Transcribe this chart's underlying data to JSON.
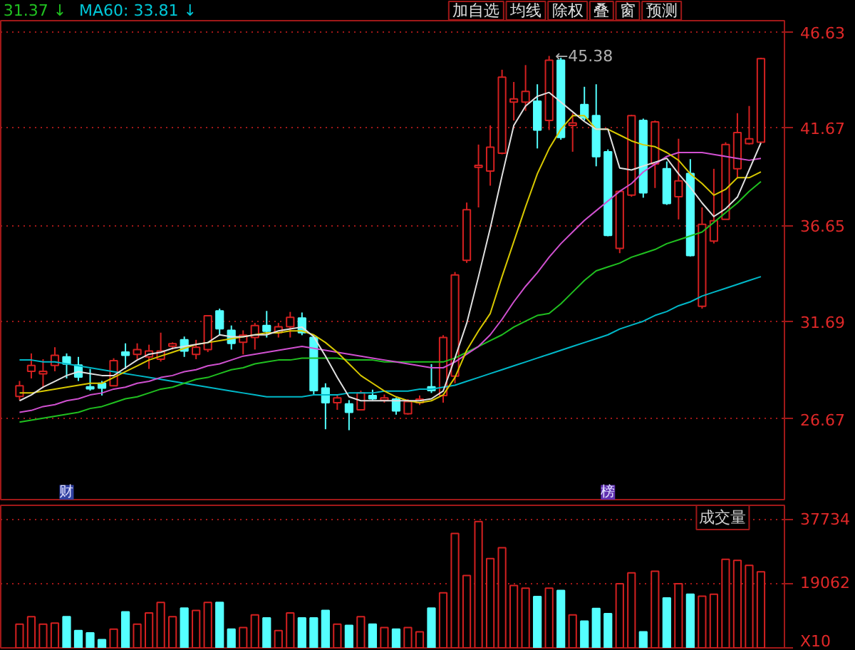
{
  "chart_data": [
    {
      "type": "candlestick",
      "categories": [
        null,
        null,
        null,
        null,
        null,
        null,
        null,
        null,
        null,
        null,
        null,
        null,
        null,
        null,
        null,
        null,
        null,
        null,
        null,
        null,
        null,
        null,
        null,
        null,
        null,
        null,
        null,
        null,
        null,
        null,
        null,
        null,
        null,
        null,
        null,
        null,
        null,
        null,
        null,
        null,
        null,
        null,
        null,
        null,
        null,
        null,
        null,
        null,
        null,
        null,
        null,
        null,
        null,
        null,
        null,
        null,
        null,
        null,
        null,
        null,
        null,
        null,
        null,
        null
      ],
      "ohlc": [
        [
          27.82,
          28.62,
          27.63,
          28.37
        ],
        [
          29.12,
          30.04,
          28.75,
          29.42
        ],
        [
          28.99,
          29.74,
          28.25,
          29.12
        ],
        [
          29.42,
          30.36,
          29.12,
          29.94
        ],
        [
          29.86,
          30.04,
          28.75,
          29.49
        ],
        [
          29.44,
          29.86,
          28.62,
          28.82
        ],
        [
          28.32,
          29.24,
          28.12,
          28.22
        ],
        [
          28.5,
          28.62,
          27.87,
          28.25
        ],
        [
          28.37,
          29.79,
          28.37,
          29.67
        ],
        [
          30.11,
          30.56,
          29.24,
          29.94
        ],
        [
          29.99,
          30.56,
          29.74,
          30.24
        ],
        [
          29.86,
          30.49,
          29.24,
          30.16
        ],
        [
          29.74,
          31.11,
          29.62,
          30.16
        ],
        [
          30.41,
          30.61,
          30.24,
          30.54
        ],
        [
          30.74,
          30.91,
          29.86,
          30.16
        ],
        [
          29.99,
          30.74,
          29.74,
          30.36
        ],
        [
          30.24,
          31.98,
          30.11,
          31.98
        ],
        [
          32.23,
          32.35,
          30.98,
          31.31
        ],
        [
          31.23,
          31.48,
          30.24,
          30.56
        ],
        [
          30.61,
          31.23,
          29.99,
          30.98
        ],
        [
          30.86,
          31.61,
          30.24,
          31.48
        ],
        [
          31.48,
          32.23,
          30.86,
          31.18
        ],
        [
          31.11,
          31.61,
          30.86,
          31.41
        ],
        [
          31.41,
          32.18,
          30.86,
          31.9
        ],
        [
          31.86,
          32.15,
          30.98,
          31.11
        ],
        [
          30.86,
          30.98,
          27.87,
          28.12
        ],
        [
          28.25,
          28.5,
          26.13,
          27.5
        ],
        [
          27.5,
          27.87,
          27.13,
          27.75
        ],
        [
          27.43,
          27.63,
          26.08,
          27.0
        ],
        [
          27.13,
          28.12,
          27.13,
          28.0
        ],
        [
          27.87,
          28.17,
          27.63,
          27.7
        ],
        [
          27.63,
          27.92,
          27.5,
          27.75
        ],
        [
          27.68,
          27.75,
          26.88,
          27.08
        ],
        [
          26.93,
          27.68,
          26.88,
          27.55
        ],
        [
          27.5,
          27.87,
          27.38,
          27.68
        ],
        [
          28.32,
          29.49,
          28.0,
          28.12
        ],
        [
          27.87,
          30.98,
          27.5,
          30.86
        ],
        [
          28.87,
          34.24,
          28.5,
          34.09
        ],
        [
          34.84,
          37.82,
          34.71,
          37.45
        ],
        [
          39.64,
          40.81,
          37.57,
          39.74
        ],
        [
          39.44,
          41.8,
          38.69,
          40.68
        ],
        [
          40.36,
          44.67,
          40.31,
          44.29
        ],
        [
          43.0,
          44.04,
          42.05,
          43.17
        ],
        [
          43.0,
          44.91,
          42.55,
          43.55
        ],
        [
          43.05,
          43.92,
          40.61,
          41.56
        ],
        [
          42.05,
          45.38,
          41.56,
          45.16
        ],
        [
          45.16,
          45.29,
          41.06,
          41.18
        ],
        [
          41.8,
          42.43,
          40.44,
          41.93
        ],
        [
          42.87,
          43.79,
          42.05,
          42.18
        ],
        [
          42.3,
          43.92,
          39.69,
          40.19
        ],
        [
          40.44,
          40.56,
          36.08,
          36.13
        ],
        [
          35.46,
          38.45,
          35.21,
          38.4
        ],
        [
          38.2,
          42.35,
          38.12,
          42.3
        ],
        [
          42.05,
          42.15,
          38.07,
          38.32
        ],
        [
          39.81,
          42.05,
          38.57,
          41.98
        ],
        [
          39.56,
          39.94,
          37.7,
          37.77
        ],
        [
          38.12,
          41.11,
          36.95,
          38.94
        ],
        [
          39.32,
          40.06,
          35.04,
          35.09
        ],
        [
          32.47,
          37.57,
          32.35,
          36.7
        ],
        [
          35.83,
          39.56,
          35.71,
          36.88
        ],
        [
          36.95,
          40.93,
          36.95,
          40.81
        ],
        [
          39.56,
          42.43,
          39.07,
          41.43
        ],
        [
          40.86,
          42.8,
          40.81,
          41.11
        ],
        [
          40.93,
          45.29,
          40.93,
          45.24
        ]
      ],
      "colors": [
        "#d42020",
        "#d42020",
        "#d42020",
        "#d42020",
        "#54ffff",
        "#54ffff",
        "#54ffff",
        "#54ffff",
        "#d42020",
        "#54ffff",
        "#d42020",
        "#d42020",
        "#d42020",
        "#d42020",
        "#54ffff",
        "#d42020",
        "#d42020",
        "#54ffff",
        "#54ffff",
        "#d42020",
        "#d42020",
        "#54ffff",
        "#d42020",
        "#d42020",
        "#54ffff",
        "#54ffff",
        "#54ffff",
        "#d42020",
        "#54ffff",
        "#d42020",
        "#54ffff",
        "#d42020",
        "#54ffff",
        "#d42020",
        "#d42020",
        "#54ffff",
        "#d42020",
        "#d42020",
        "#d42020",
        "#d42020",
        "#d42020",
        "#d42020",
        "#d42020",
        "#d42020",
        "#54ffff",
        "#d42020",
        "#54ffff",
        "#d42020",
        "#54ffff",
        "#54ffff",
        "#54ffff",
        "#d42020",
        "#d42020",
        "#54ffff",
        "#d42020",
        "#54ffff",
        "#d42020",
        "#54ffff",
        "#d42020",
        "#d42020",
        "#d42020",
        "#d42020",
        "#d42020",
        "#d42020"
      ],
      "series": [
        {
          "type": "line",
          "color": "#00b8c8",
          "values": [
            29.7,
            29.7,
            29.6,
            29.6,
            29.5,
            29.4,
            29.3,
            29.2,
            29.1,
            29.0,
            28.9,
            28.8,
            28.7,
            28.6,
            28.5,
            28.4,
            28.3,
            28.2,
            28.1,
            28.0,
            27.9,
            27.8,
            27.8,
            27.8,
            27.8,
            27.9,
            27.9,
            27.9,
            28.0,
            28.0,
            28.0,
            28.1,
            28.1,
            28.1,
            28.2,
            28.2,
            28.3,
            28.4,
            28.6,
            28.8,
            29.0,
            29.2,
            29.4,
            29.6,
            29.8,
            30.0,
            30.2,
            30.4,
            30.6,
            30.8,
            31.0,
            31.3,
            31.5,
            31.7,
            32.0,
            32.2,
            32.5,
            32.7,
            33.0,
            33.2,
            33.4,
            33.6,
            33.8,
            34.0
          ]
        },
        {
          "type": "line",
          "color": "#20c020",
          "values": [
            26.5,
            26.6,
            26.7,
            26.8,
            26.9,
            27.0,
            27.2,
            27.3,
            27.5,
            27.7,
            27.8,
            28.0,
            28.2,
            28.3,
            28.5,
            28.7,
            28.8,
            29.0,
            29.2,
            29.3,
            29.5,
            29.6,
            29.7,
            29.7,
            29.8,
            29.8,
            29.8,
            29.8,
            29.7,
            29.7,
            29.7,
            29.6,
            29.6,
            29.6,
            29.6,
            29.6,
            29.6,
            29.8,
            30.1,
            30.4,
            30.7,
            31.0,
            31.4,
            31.7,
            32.0,
            32.1,
            32.6,
            33.2,
            33.8,
            34.3,
            34.5,
            34.7,
            35.0,
            35.2,
            35.4,
            35.7,
            35.9,
            36.1,
            36.3,
            36.8,
            37.3,
            37.8,
            38.4,
            38.9
          ]
        },
        {
          "type": "line",
          "color": "#d050d0",
          "values": [
            27.0,
            27.1,
            27.3,
            27.4,
            27.6,
            27.7,
            27.9,
            28.0,
            28.2,
            28.3,
            28.5,
            28.6,
            28.8,
            28.9,
            29.1,
            29.2,
            29.4,
            29.5,
            29.7,
            29.9,
            30.0,
            30.1,
            30.2,
            30.3,
            30.4,
            30.3,
            30.2,
            30.1,
            30.0,
            29.9,
            29.8,
            29.7,
            29.6,
            29.5,
            29.4,
            29.3,
            29.3,
            29.6,
            30.0,
            30.4,
            31.0,
            31.8,
            32.7,
            33.5,
            34.2,
            35.0,
            35.7,
            36.3,
            36.9,
            37.4,
            37.9,
            38.4,
            38.8,
            39.4,
            39.8,
            40.2,
            40.4,
            40.4,
            40.4,
            40.3,
            40.2,
            40.1,
            40.0,
            40.1
          ]
        },
        {
          "type": "line",
          "color": "#d8c800",
          "values": [
            28.0,
            28.0,
            28.1,
            28.2,
            28.3,
            28.4,
            28.5,
            28.5,
            28.8,
            29.1,
            29.4,
            29.7,
            29.9,
            30.1,
            30.3,
            30.5,
            30.6,
            30.7,
            30.8,
            30.9,
            31.0,
            31.1,
            31.1,
            31.2,
            31.2,
            31.0,
            30.6,
            30.1,
            29.5,
            28.9,
            28.5,
            28.1,
            27.8,
            27.6,
            27.5,
            27.6,
            27.9,
            28.8,
            30.2,
            31.2,
            32.1,
            34.0,
            35.8,
            37.6,
            39.3,
            40.6,
            41.6,
            42.3,
            42.3,
            41.6,
            41.6,
            41.3,
            41.0,
            40.8,
            40.7,
            40.4,
            40.0,
            39.3,
            38.8,
            38.2,
            38.5,
            39.1,
            39.1,
            39.4
          ]
        },
        {
          "type": "line",
          "color": "#e0e0e0",
          "values": [
            27.6,
            27.9,
            28.3,
            28.6,
            28.9,
            29.1,
            29.0,
            28.9,
            28.9,
            29.3,
            29.7,
            30.0,
            30.1,
            30.3,
            30.4,
            30.5,
            30.6,
            31.0,
            30.9,
            30.9,
            31.0,
            31.0,
            31.2,
            31.3,
            31.4,
            30.9,
            29.9,
            28.8,
            27.8,
            27.6,
            27.6,
            27.6,
            27.6,
            27.6,
            27.6,
            27.7,
            28.1,
            29.8,
            31.6,
            34.0,
            36.5,
            39.2,
            41.8,
            42.8,
            43.3,
            43.5,
            43.0,
            42.5,
            42.0,
            41.6,
            41.6,
            39.6,
            39.5,
            39.7,
            39.9,
            40.1,
            39.3,
            38.6,
            37.8,
            37.1,
            37.5,
            38.1,
            39.5,
            40.9
          ]
        }
      ],
      "ylim": [
        22.5,
        47.2
      ],
      "yticks": [
        26.67,
        31.69,
        36.65,
        41.67,
        46.63
      ],
      "grid": "y",
      "tick_labels": "y",
      "annotations": [
        "31.37 ↓",
        "MA60: 33.81 ↓",
        "加自选",
        "均线",
        "除权",
        "叠",
        "窗",
        "预测",
        "财",
        "榜",
        "←45.38"
      ]
    },
    {
      "type": "bar",
      "title": "成交量",
      "categories": [
        null,
        null,
        null,
        null,
        null,
        null,
        null,
        null,
        null,
        null,
        null,
        null,
        null,
        null,
        null,
        null,
        null,
        null,
        null,
        null,
        null,
        null,
        null,
        null,
        null,
        null,
        null,
        null,
        null,
        null,
        null,
        null,
        null,
        null,
        null,
        null,
        null,
        null,
        null,
        null,
        null,
        null,
        null,
        null,
        null,
        null,
        null,
        null,
        null,
        null,
        null,
        null,
        null,
        null,
        null,
        null,
        null,
        null,
        null,
        null,
        null,
        null,
        null,
        null
      ],
      "values": [
        7000,
        9200,
        7000,
        7300,
        9200,
        5100,
        4400,
        2400,
        5500,
        10600,
        7000,
        10300,
        13400,
        9200,
        11700,
        11000,
        13400,
        13400,
        5500,
        6000,
        9700,
        8800,
        5100,
        10300,
        8800,
        8800,
        11000,
        7000,
        6600,
        9200,
        7000,
        6000,
        5500,
        6000,
        4700,
        11700,
        16200,
        33700,
        21300,
        37200,
        26300,
        29500,
        18400,
        17600,
        15100,
        17600,
        16900,
        9700,
        7900,
        11600,
        10100,
        18900,
        22100,
        4700,
        22600,
        14700,
        18900,
        15800,
        15200,
        15800,
        26100,
        25800,
        24300,
        22400
      ],
      "colors": [
        "#d42020",
        "#d42020",
        "#d42020",
        "#d42020",
        "#54ffff",
        "#54ffff",
        "#54ffff",
        "#54ffff",
        "#d42020",
        "#54ffff",
        "#d42020",
        "#d42020",
        "#d42020",
        "#d42020",
        "#54ffff",
        "#d42020",
        "#d42020",
        "#54ffff",
        "#54ffff",
        "#d42020",
        "#d42020",
        "#54ffff",
        "#d42020",
        "#d42020",
        "#54ffff",
        "#54ffff",
        "#54ffff",
        "#d42020",
        "#54ffff",
        "#d42020",
        "#54ffff",
        "#d42020",
        "#54ffff",
        "#d42020",
        "#d42020",
        "#54ffff",
        "#d42020",
        "#d42020",
        "#d42020",
        "#d42020",
        "#d42020",
        "#d42020",
        "#d42020",
        "#d42020",
        "#54ffff",
        "#d42020",
        "#54ffff",
        "#d42020",
        "#54ffff",
        "#54ffff",
        "#54ffff",
        "#d42020",
        "#d42020",
        "#54ffff",
        "#d42020",
        "#54ffff",
        "#d42020",
        "#54ffff",
        "#d42020",
        "#d42020",
        "#d42020",
        "#d42020",
        "#d42020",
        "#d42020"
      ],
      "ylim": [
        0,
        42000
      ],
      "yticks": [
        {
          "value": 0,
          "label": "X10"
        },
        19062,
        37734
      ],
      "grid": "y",
      "tick_labels": "y"
    }
  ]
}
